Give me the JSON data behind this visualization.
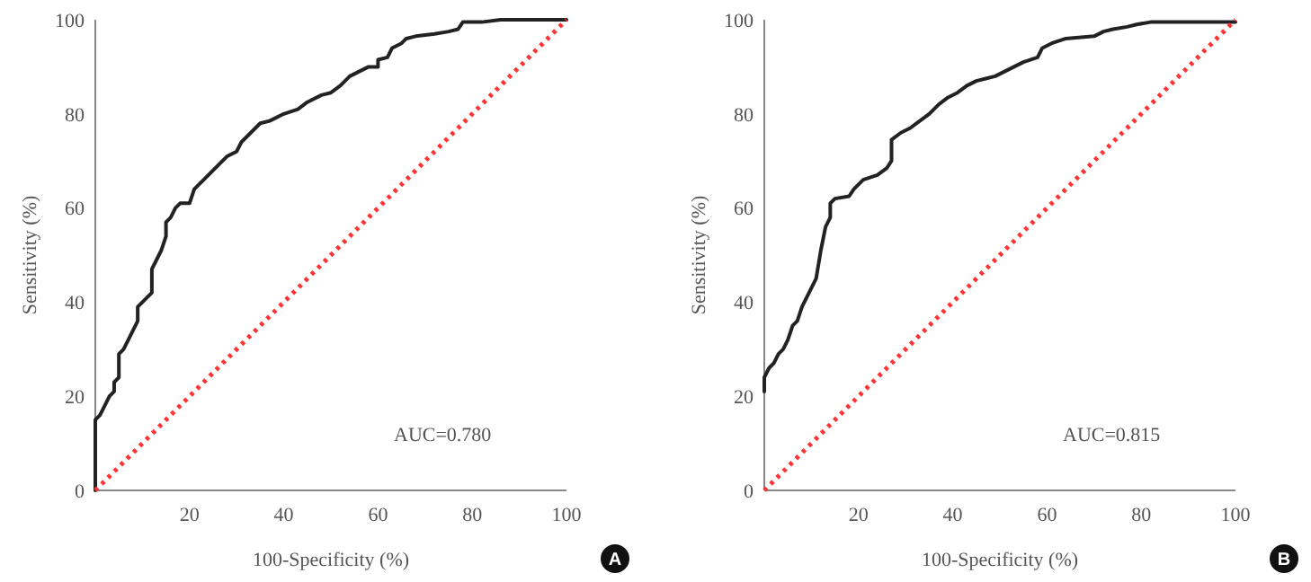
{
  "chart_data": [
    {
      "type": "line",
      "xlabel": "100-Specificity (%)",
      "ylabel": "Sensitivity (%)",
      "xlim": [
        0,
        100
      ],
      "ylim": [
        0,
        100
      ],
      "xticks": [
        20,
        40,
        60,
        80,
        100
      ],
      "yticks": [
        0,
        20,
        40,
        60,
        80,
        100
      ],
      "grid": false,
      "marker": "none",
      "annotations": [
        "AUC=0.780",
        "A"
      ],
      "series": [
        {
          "color": "#222222",
          "line_style": "solid",
          "x": [
            0,
            0,
            1,
            2,
            3,
            4,
            4,
            5,
            5,
            6,
            7,
            8,
            9,
            9,
            10,
            11,
            12,
            12,
            13,
            14,
            15,
            15,
            16,
            17,
            18,
            20,
            21,
            22,
            24,
            26,
            28,
            30,
            31,
            33,
            35,
            37,
            40,
            43,
            45,
            48,
            50,
            52,
            54,
            56,
            58,
            60,
            60,
            62,
            63,
            65,
            66,
            68,
            72,
            75,
            77,
            78,
            82,
            86,
            100
          ],
          "values": [
            0,
            15,
            16,
            18,
            20,
            21,
            23,
            24,
            29,
            30,
            32,
            34,
            36,
            39,
            40,
            41,
            42,
            47,
            49,
            51,
            54,
            57,
            58,
            60,
            61,
            61,
            64,
            65,
            67,
            69,
            71,
            72,
            74,
            76,
            78,
            78.5,
            80,
            81,
            82.5,
            84,
            84.5,
            86,
            88,
            89,
            90,
            90,
            91.5,
            92,
            94,
            95,
            96,
            96.5,
            97,
            97.5,
            98,
            99.5,
            99.5,
            100,
            100
          ]
        },
        {
          "color": "#ff3333",
          "line_style": "dotted",
          "x": [
            0,
            100
          ],
          "values": [
            0,
            100
          ]
        }
      ]
    },
    {
      "type": "line",
      "xlabel": "100-Specificity (%)",
      "ylabel": "Sensitivity (%)",
      "xlim": [
        0,
        100
      ],
      "ylim": [
        0,
        100
      ],
      "xticks": [
        20,
        40,
        60,
        80,
        100
      ],
      "yticks": [
        0,
        20,
        40,
        60,
        80,
        100
      ],
      "grid": false,
      "marker": "none",
      "annotations": [
        "AUC=0.815",
        "B"
      ],
      "series": [
        {
          "color": "#222222",
          "line_style": "solid",
          "x": [
            0,
            0,
            1,
            2,
            3,
            4,
            5,
            6,
            7,
            8,
            9,
            10,
            11,
            12,
            13,
            14,
            14,
            15,
            18,
            19,
            20,
            21,
            24,
            26,
            27,
            27,
            29,
            31,
            33,
            35,
            37,
            39,
            41,
            43,
            45,
            47,
            49,
            51,
            53,
            55,
            58,
            59,
            61,
            64,
            70,
            72,
            74,
            77,
            79,
            82,
            88,
            100
          ],
          "values": [
            21,
            24,
            26,
            27,
            29,
            30,
            32,
            35,
            36,
            39,
            41,
            43,
            45,
            51,
            56,
            58,
            61,
            62,
            62.5,
            64,
            65,
            66,
            67,
            68.5,
            70,
            74.5,
            76,
            77,
            78.5,
            80,
            82,
            83.5,
            84.5,
            86,
            87,
            87.5,
            88,
            89,
            90,
            91,
            92,
            94,
            95,
            96,
            96.5,
            97.5,
            98,
            98.5,
            99,
            99.5,
            99.5,
            99.5
          ]
        },
        {
          "color": "#ff3333",
          "line_style": "dotted",
          "x": [
            0,
            100
          ],
          "values": [
            0,
            100
          ]
        }
      ]
    }
  ]
}
